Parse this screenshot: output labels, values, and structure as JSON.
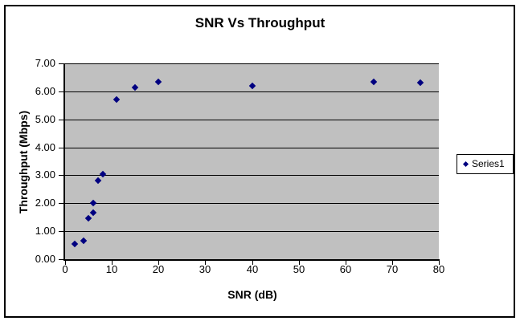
{
  "chart_data": {
    "type": "scatter",
    "title": "SNR Vs Throughput",
    "xlabel": "SNR (dB)",
    "ylabel": "Throughput (Mbps)",
    "xlim": [
      0,
      80
    ],
    "ylim": [
      0,
      7
    ],
    "grid": "horizontal-major",
    "legend_position": "right-middle",
    "plot_background_color": "#c0c0c0",
    "gridline_color": "#000000",
    "x_ticks": [
      {
        "value": 0,
        "label": "0"
      },
      {
        "value": 10,
        "label": "10"
      },
      {
        "value": 20,
        "label": "20"
      },
      {
        "value": 30,
        "label": "30"
      },
      {
        "value": 40,
        "label": "40"
      },
      {
        "value": 50,
        "label": "50"
      },
      {
        "value": 60,
        "label": "60"
      },
      {
        "value": 70,
        "label": "70"
      },
      {
        "value": 80,
        "label": "80"
      }
    ],
    "y_ticks": [
      {
        "value": 0,
        "label": "0.00"
      },
      {
        "value": 1,
        "label": "1.00"
      },
      {
        "value": 2,
        "label": "2.00"
      },
      {
        "value": 3,
        "label": "3.00"
      },
      {
        "value": 4,
        "label": "4.00"
      },
      {
        "value": 5,
        "label": "5.00"
      },
      {
        "value": 6,
        "label": "6.00"
      },
      {
        "value": 7,
        "label": "7.00"
      }
    ],
    "marker": {
      "shape": "diamond",
      "color": "#000080"
    },
    "series": [
      {
        "name": "Series1",
        "points": [
          [
            2,
            0.55
          ],
          [
            4,
            0.65
          ],
          [
            5,
            1.45
          ],
          [
            6,
            1.65
          ],
          [
            6,
            2.0
          ],
          [
            7,
            2.8
          ],
          [
            8,
            3.05
          ],
          [
            11,
            5.7
          ],
          [
            15,
            6.15
          ],
          [
            20,
            6.35
          ],
          [
            40,
            6.2
          ],
          [
            66,
            6.35
          ],
          [
            76,
            6.3
          ]
        ]
      }
    ]
  },
  "legend": {
    "items": [
      {
        "label": "Series1",
        "marker_color": "#000080"
      }
    ]
  }
}
